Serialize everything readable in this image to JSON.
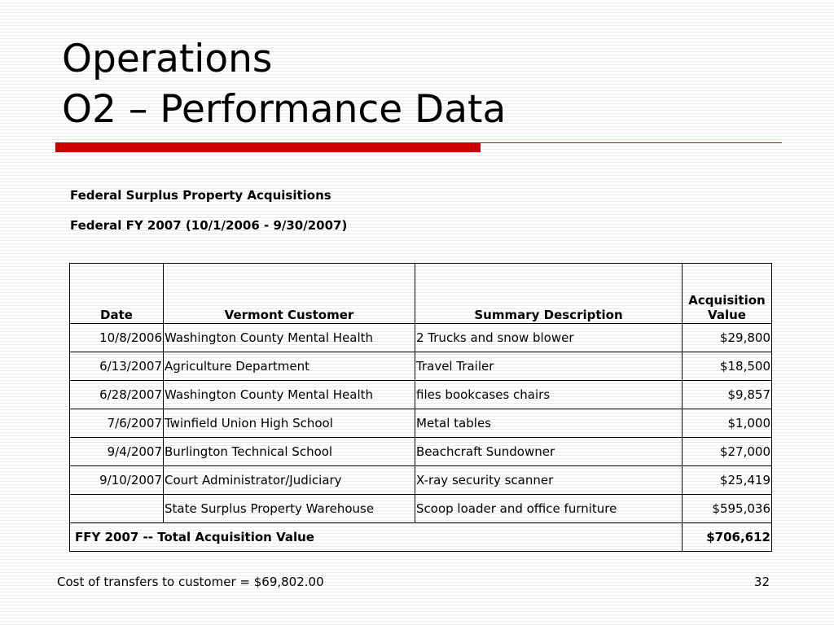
{
  "slide": {
    "title_line1": "Operations",
    "title_line2": "O2 – Performance Data",
    "heading1": "Federal Surplus Property Acquisitions",
    "heading2": "Federal FY 2007 (10/1/2006 - 9/30/2007)"
  },
  "table": {
    "headers": {
      "date": "Date",
      "customer": "Vermont Customer",
      "description": "Summary Description",
      "value_line1": "Acquisition",
      "value_line2": "Value"
    },
    "rows": [
      {
        "date": "10/8/2006",
        "customer": "Washington County Mental Health",
        "description": "2 Trucks and snow blower",
        "value": "$29,800"
      },
      {
        "date": "6/13/2007",
        "customer": "Agriculture Department",
        "description": "Travel Trailer",
        "value": "$18,500"
      },
      {
        "date": "6/28/2007",
        "customer": "Washington County Mental Health",
        "description": "files bookcases chairs",
        "value": "$9,857"
      },
      {
        "date": "7/6/2007",
        "customer": "Twinfield Union High School",
        "description": "Metal tables",
        "value": "$1,000"
      },
      {
        "date": "9/4/2007",
        "customer": "Burlington Technical School",
        "description": "Beachcraft Sundowner",
        "value": "$27,000"
      },
      {
        "date": "9/10/2007",
        "customer": "Court Administrator/Judiciary",
        "description": "X-ray security scanner",
        "value": "$25,419"
      },
      {
        "date": "",
        "customer": "State Surplus Property Warehouse",
        "description": "Scoop loader and office furniture",
        "value": "$595,036"
      }
    ],
    "total_label": "FFY 2007 -- Total Acquisition Value",
    "total_value": "$706,612"
  },
  "footer": {
    "note": "Cost of transfers to customer = $69,802.00",
    "page_number": "32"
  },
  "colors": {
    "accent": "#cc0000"
  }
}
